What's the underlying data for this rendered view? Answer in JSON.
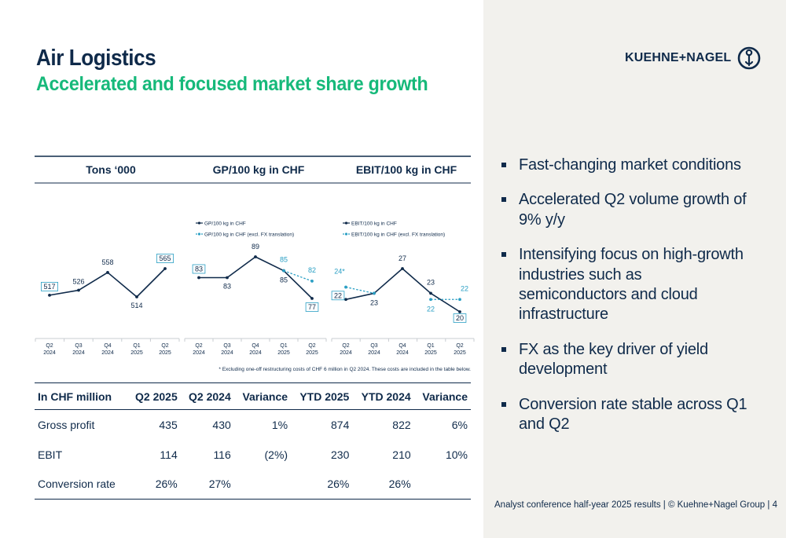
{
  "header": {
    "title": "Air Logistics",
    "subtitle": "Accelerated and focused market share growth",
    "logo_text": "KUEHNE+NAGEL"
  },
  "panel_headers": [
    "Tons ‘000",
    "GP/100 kg in CHF",
    "EBIT/100 kg in CHF"
  ],
  "chart_data": [
    {
      "type": "line",
      "categories": [
        "Q2 2024",
        "Q3 2024",
        "Q4 2024",
        "Q1 2025",
        "Q2 2025"
      ],
      "series": [
        {
          "values": [
            517,
            526,
            558,
            514,
            565
          ]
        }
      ],
      "boxed_labels": [
        0,
        4
      ]
    },
    {
      "type": "line",
      "categories": [
        "Q2 2024",
        "Q3 2024",
        "Q4 2024",
        "Q1 2025",
        "Q2 2025"
      ],
      "series": [
        {
          "name": "GP/100 kg in CHF",
          "values": [
            83,
            83,
            89,
            85,
            77
          ]
        },
        {
          "name": "GP/100 kg in CHF (excl. FX translation)",
          "values": [
            null,
            null,
            null,
            85,
            82
          ],
          "style": "dashed"
        }
      ],
      "boxed_labels": [
        0,
        4
      ]
    },
    {
      "type": "line",
      "categories": [
        "Q2 2024",
        "Q3 2024",
        "Q4 2024",
        "Q1 2025",
        "Q2 2025"
      ],
      "series": [
        {
          "name": "EBIT/100 kg in CHF",
          "values": [
            22,
            23,
            27,
            23,
            20
          ]
        },
        {
          "name": "EBIT/100 kg in CHF (excl. FX translation)",
          "values": [
            24,
            23,
            null,
            22,
            22
          ],
          "style": "dashed"
        }
      ],
      "first_label_text": "24*",
      "boxed_labels": [
        0,
        4
      ]
    }
  ],
  "category_labels": [
    [
      "Q2",
      "2024"
    ],
    [
      "Q3",
      "2024"
    ],
    [
      "Q4",
      "2024"
    ],
    [
      "Q1",
      "2025"
    ],
    [
      "Q2",
      "2025"
    ]
  ],
  "footnote": "* Excluding one-off restructuring costs of CHF 6 million in Q2 2024. These costs are included in the table below.",
  "table": {
    "columns": [
      "In CHF million",
      "Q2 2025",
      "Q2 2024",
      "Variance",
      "YTD 2025",
      "YTD 2024",
      "Variance"
    ],
    "rows": [
      [
        "Gross profit",
        "435",
        "430",
        "1%",
        "874",
        "822",
        "6%"
      ],
      [
        "EBIT",
        "114",
        "116",
        "(2%)",
        "230",
        "210",
        "10%"
      ],
      [
        "Conversion rate",
        "26%",
        "27%",
        "",
        "26%",
        "26%",
        ""
      ]
    ]
  },
  "bullets": [
    "Fast-changing market conditions",
    "Accelerated Q2 volume growth of 9% y/y",
    "Intensifying focus on high-growth industries such as semiconductors and cloud infrastructure",
    "FX as the key driver of yield development",
    "Conversion rate stable across Q1 and Q2"
  ],
  "footer": "Analyst conference half-year 2025 results | © Kuehne+Nagel Group | 4",
  "colors": {
    "navy": "#0f2a4a",
    "green": "#16b97a",
    "teal": "#2a9fc4",
    "panel_bg": "#f2f1ed",
    "grid": "#c8ccd2"
  }
}
